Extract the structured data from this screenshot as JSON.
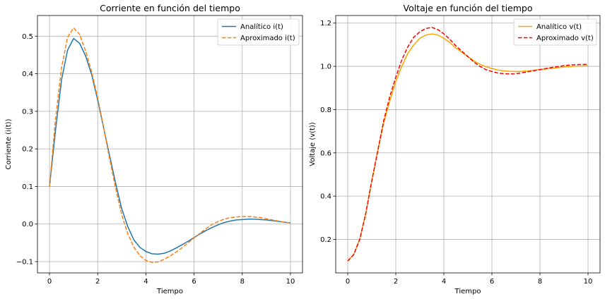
{
  "chart_data": [
    {
      "type": "line",
      "title": "Corriente en función del tiempo",
      "xlabel": "Tiempo",
      "ylabel": "Corriente (i(t))",
      "xlim": [
        -0.5,
        10.5
      ],
      "ylim": [
        -0.13,
        0.555
      ],
      "xticks": [
        0,
        2,
        4,
        6,
        8,
        10
      ],
      "yticks": [
        -0.1,
        0.0,
        0.1,
        0.2,
        0.3,
        0.4,
        0.5
      ],
      "ytick_labels": [
        "−0.1",
        "0.0",
        "0.1",
        "0.2",
        "0.3",
        "0.4",
        "0.5"
      ],
      "grid": true,
      "legend": "upper right",
      "x": [
        0,
        0.25,
        0.5,
        0.75,
        1.0,
        1.25,
        1.5,
        1.75,
        2.0,
        2.25,
        2.5,
        2.75,
        3.0,
        3.25,
        3.5,
        3.75,
        4.0,
        4.25,
        4.5,
        4.75,
        5.0,
        5.25,
        5.5,
        5.75,
        6.0,
        6.25,
        6.5,
        6.75,
        7.0,
        7.25,
        7.5,
        7.75,
        8.0,
        8.25,
        8.5,
        8.75,
        9.0,
        9.25,
        9.5,
        9.75,
        10.0
      ],
      "series": [
        {
          "name": "Analítico i(t)",
          "color": "#1f77b4",
          "dash": "solid",
          "values": [
            0.1,
            0.25,
            0.384,
            0.463,
            0.494,
            0.481,
            0.447,
            0.398,
            0.33,
            0.255,
            0.18,
            0.107,
            0.04,
            -0.007,
            -0.042,
            -0.062,
            -0.073,
            -0.079,
            -0.08,
            -0.078,
            -0.072,
            -0.064,
            -0.055,
            -0.046,
            -0.036,
            -0.026,
            -0.017,
            -0.009,
            -0.002,
            0.004,
            0.008,
            0.011,
            0.012,
            0.013,
            0.013,
            0.012,
            0.011,
            0.009,
            0.007,
            0.005,
            0.003
          ]
        },
        {
          "name": "Aproximado i(t)",
          "color": "#ff7f0e",
          "dash": "dashed",
          "values": [
            0.1,
            0.28,
            0.416,
            0.497,
            0.522,
            0.505,
            0.46,
            0.405,
            0.336,
            0.256,
            0.172,
            0.094,
            0.024,
            -0.026,
            -0.061,
            -0.084,
            -0.097,
            -0.102,
            -0.101,
            -0.094,
            -0.085,
            -0.075,
            -0.063,
            -0.05,
            -0.037,
            -0.024,
            -0.012,
            -0.001,
            0.007,
            0.013,
            0.017,
            0.019,
            0.02,
            0.02,
            0.019,
            0.017,
            0.014,
            0.011,
            0.008,
            0.005,
            0.003
          ]
        }
      ]
    },
    {
      "type": "line",
      "title": "Voltaje en función del tiempo",
      "xlabel": "Tiempo",
      "ylabel": "Voltaje (v(t))",
      "xlim": [
        -0.5,
        10.5
      ],
      "ylim": [
        0.045,
        1.235
      ],
      "xticks": [
        0,
        2,
        4,
        6,
        8,
        10
      ],
      "yticks": [
        0.2,
        0.4,
        0.6,
        0.8,
        1.0,
        1.2
      ],
      "ytick_labels": [
        "0.2",
        "0.4",
        "0.6",
        "0.8",
        "1.0",
        "1.2"
      ],
      "grid": true,
      "legend": "upper right",
      "x": [
        0,
        0.25,
        0.5,
        0.75,
        1.0,
        1.25,
        1.5,
        1.75,
        2.0,
        2.25,
        2.5,
        2.75,
        3.0,
        3.25,
        3.5,
        3.75,
        4.0,
        4.25,
        4.5,
        4.75,
        5.0,
        5.25,
        5.5,
        5.75,
        6.0,
        6.25,
        6.5,
        6.75,
        7.0,
        7.25,
        7.5,
        7.75,
        8.0,
        8.25,
        8.5,
        8.75,
        9.0,
        9.25,
        9.5,
        9.75,
        10.0
      ],
      "series": [
        {
          "name": "Analítico v(t)",
          "color": "#ffa500",
          "dash": "solid",
          "values": [
            0.1,
            0.13,
            0.2,
            0.32,
            0.47,
            0.61,
            0.74,
            0.84,
            0.93,
            1.0,
            1.06,
            1.1,
            1.13,
            1.145,
            1.15,
            1.145,
            1.13,
            1.11,
            1.085,
            1.065,
            1.045,
            1.025,
            1.01,
            0.998,
            0.99,
            0.983,
            0.979,
            0.977,
            0.976,
            0.977,
            0.979,
            0.982,
            0.985,
            0.988,
            0.991,
            0.994,
            0.997,
            0.999,
            1.001,
            1.002,
            1.003
          ]
        },
        {
          "name": "Aproximado v(t)",
          "color": "#ff0000",
          "dash": "dashed",
          "values": [
            0.1,
            0.13,
            0.2,
            0.32,
            0.47,
            0.61,
            0.75,
            0.86,
            0.95,
            1.03,
            1.09,
            1.135,
            1.16,
            1.175,
            1.18,
            1.17,
            1.15,
            1.125,
            1.095,
            1.07,
            1.045,
            1.02,
            1.0,
            0.985,
            0.976,
            0.969,
            0.966,
            0.965,
            0.966,
            0.97,
            0.975,
            0.98,
            0.985,
            0.99,
            0.995,
            0.999,
            1.003,
            1.006,
            1.008,
            1.009,
            1.009
          ]
        }
      ]
    }
  ]
}
